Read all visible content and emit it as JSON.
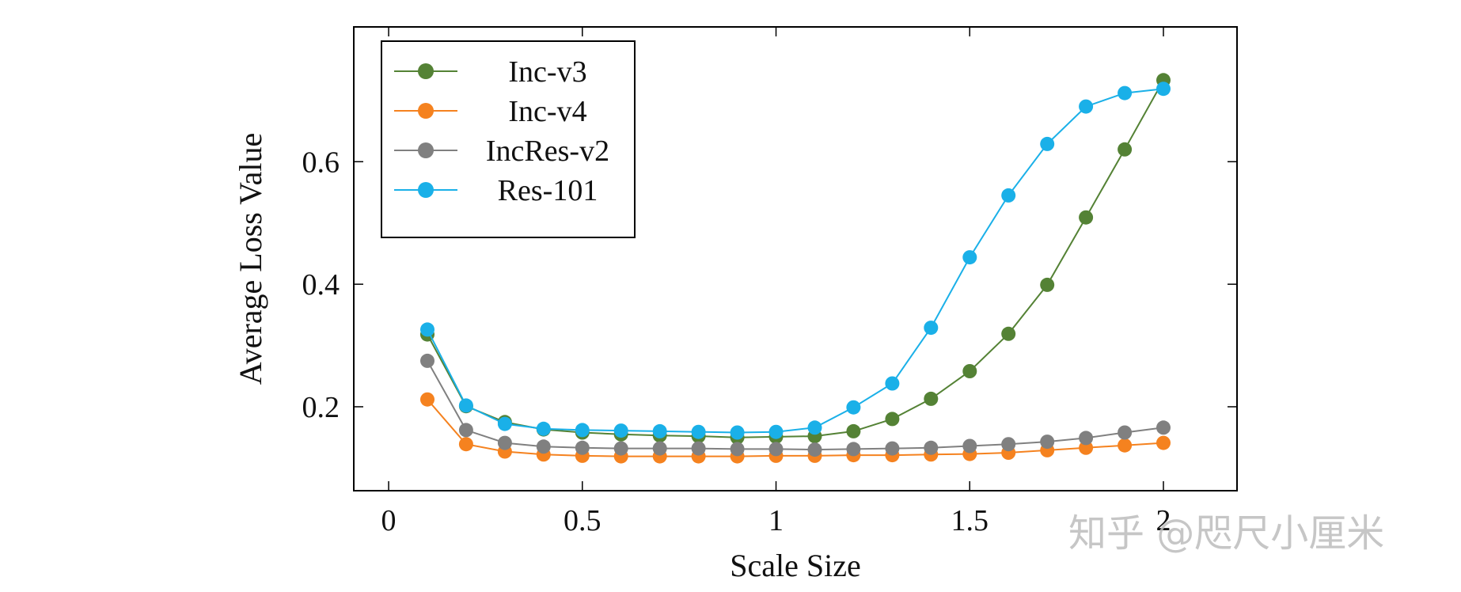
{
  "chart_data": {
    "type": "line",
    "title": "",
    "xlabel": "Scale Size",
    "ylabel": "Average Loss Value",
    "xlim": [
      -0.09,
      2.19
    ],
    "ylim": [
      0.063,
      0.82
    ],
    "xticks": [
      0,
      0.5,
      1,
      1.5,
      2
    ],
    "xtick_labels": [
      "0",
      "0.5",
      "1",
      "1.5",
      "2"
    ],
    "yticks": [
      0.2,
      0.4,
      0.6
    ],
    "ytick_labels": [
      "0.2",
      "0.4",
      "0.6"
    ],
    "legend_position": "top-left",
    "x": [
      0.1,
      0.2,
      0.3,
      0.4,
      0.5,
      0.6,
      0.7,
      0.8,
      0.9,
      1.0,
      1.1,
      1.2,
      1.3,
      1.4,
      1.5,
      1.6,
      1.7,
      1.8,
      1.9,
      2.0
    ],
    "series": [
      {
        "name": "Inc-v3",
        "color": "#548235",
        "values": [
          0.318,
          0.201,
          0.175,
          0.163,
          0.158,
          0.155,
          0.153,
          0.152,
          0.15,
          0.151,
          0.152,
          0.16,
          0.18,
          0.213,
          0.258,
          0.319,
          0.399,
          0.509,
          0.62,
          0.733
        ]
      },
      {
        "name": "Inc-v4",
        "color": "#f5821f",
        "values": [
          0.212,
          0.139,
          0.127,
          0.122,
          0.12,
          0.119,
          0.119,
          0.119,
          0.119,
          0.12,
          0.12,
          0.121,
          0.121,
          0.122,
          0.123,
          0.125,
          0.129,
          0.133,
          0.137,
          0.141
        ]
      },
      {
        "name": "IncRes-v2",
        "color": "#808080",
        "values": [
          0.275,
          0.162,
          0.141,
          0.135,
          0.133,
          0.132,
          0.132,
          0.132,
          0.131,
          0.131,
          0.13,
          0.131,
          0.132,
          0.133,
          0.136,
          0.139,
          0.143,
          0.149,
          0.158,
          0.166
        ]
      },
      {
        "name": "Res-101",
        "color": "#1ab0e8",
        "values": [
          0.326,
          0.202,
          0.172,
          0.164,
          0.162,
          0.161,
          0.16,
          0.159,
          0.158,
          0.159,
          0.166,
          0.199,
          0.238,
          0.329,
          0.444,
          0.545,
          0.629,
          0.69,
          0.712,
          0.719
        ]
      }
    ]
  },
  "watermark": {
    "text": "知乎 @咫尺小厘米"
  }
}
